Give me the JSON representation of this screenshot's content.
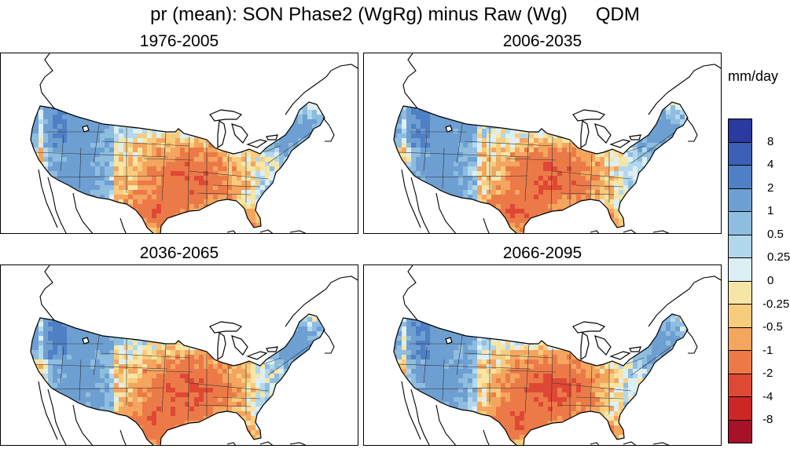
{
  "figure": {
    "title": "pr (mean): SON Phase2 (WgRg) minus Raw (Wg)",
    "method": "QDM"
  },
  "panels": [
    {
      "title": "1976-2005",
      "variant": 0
    },
    {
      "title": "2006-2035",
      "variant": 1
    },
    {
      "title": "2036-2065",
      "variant": 2
    },
    {
      "title": "2066-2095",
      "variant": 3
    }
  ],
  "colorbar": {
    "units": "mm/day",
    "labels": [
      "8",
      "4",
      "2",
      "1",
      "0.5",
      "0.25",
      "0",
      "-0.25",
      "-0.5",
      "-1",
      "-2",
      "-4",
      "-8"
    ],
    "colors": [
      "#2b3a9e",
      "#3d5fb5",
      "#4f80c5",
      "#6e9fd2",
      "#8fbde0",
      "#b3d8ec",
      "#ddeff4",
      "#f5e6a8",
      "#f8cc7d",
      "#f4a55e",
      "#ec7a48",
      "#e04836",
      "#cc2626",
      "#a5122a"
    ]
  }
}
